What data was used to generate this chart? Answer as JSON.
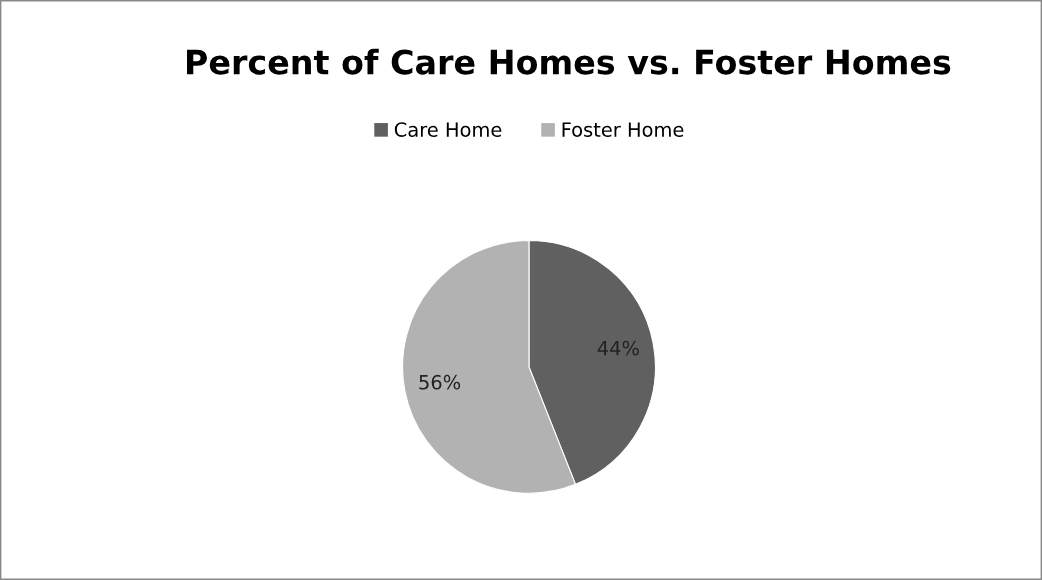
{
  "chart_data": {
    "type": "pie",
    "title": "Percent of Care Homes vs. Foster Homes",
    "categories": [
      "Care Home",
      "Foster Home"
    ],
    "values": [
      44,
      56
    ],
    "colors": [
      "#606060",
      "#b2b2b2"
    ],
    "value_labels": [
      "44%",
      "56%"
    ],
    "legend": "top"
  }
}
